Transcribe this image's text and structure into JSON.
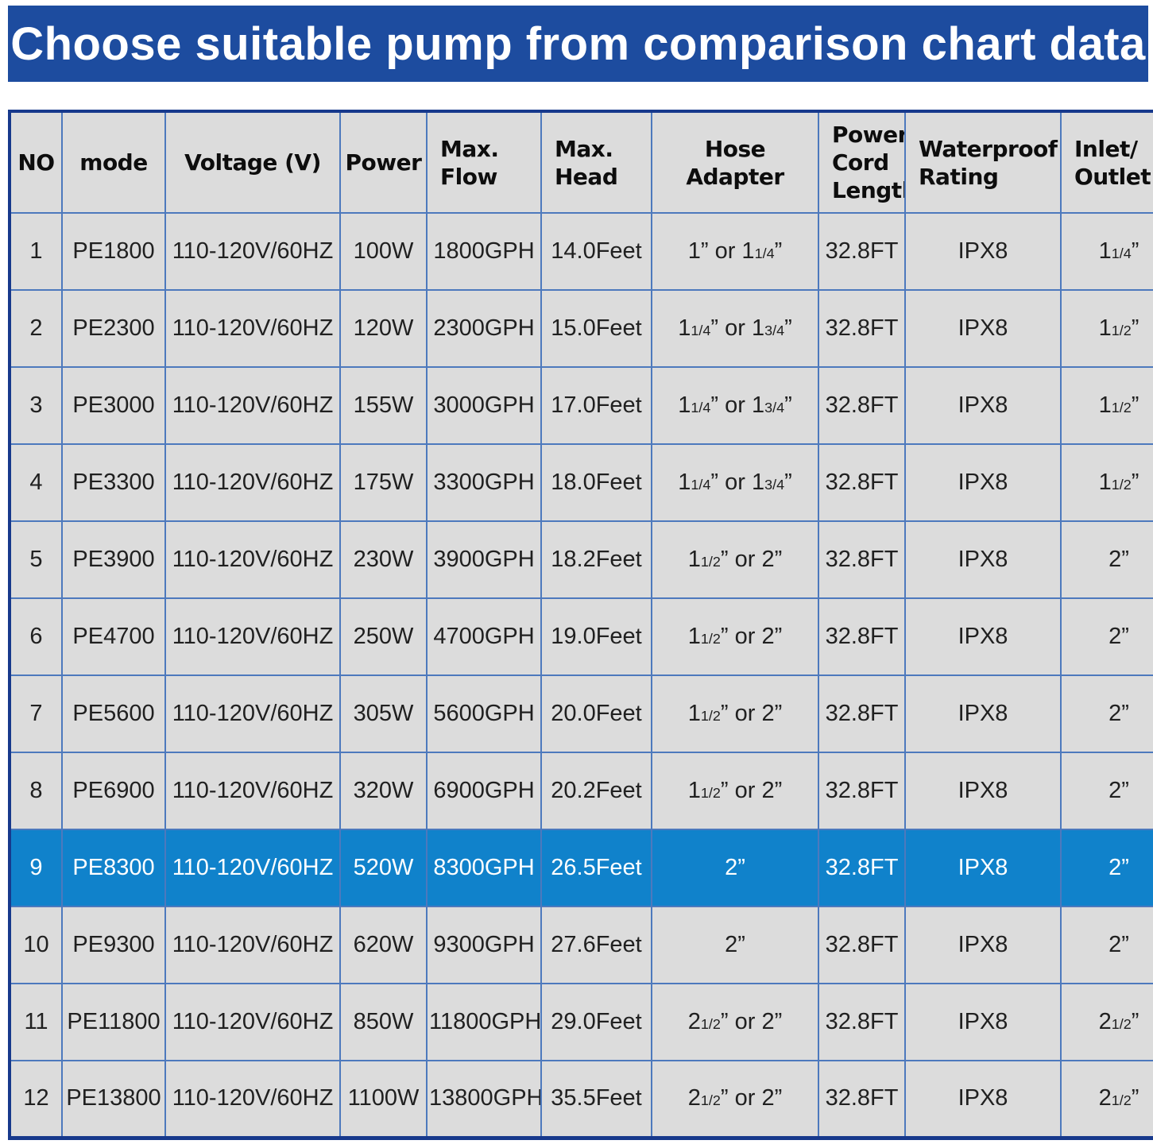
{
  "title": "Choose suitable pump from comparison chart data",
  "colors": {
    "banner_bg": "#1d4c9f",
    "banner_text": "#ffffff",
    "cell_bg": "#dcdcdc",
    "grid_border": "#4d79bd",
    "outer_border": "#17398c",
    "header_text": "#0d0d0d",
    "data_text": "#202020",
    "highlight_bg": "#1082cb",
    "highlight_text": "#ffffff"
  },
  "chart_data": {
    "type": "table",
    "title": "Choose suitable pump from comparison chart data",
    "highlighted_row_no": 9,
    "columns": [
      {
        "key": "no",
        "label": "NO"
      },
      {
        "key": "mode",
        "label": "mode"
      },
      {
        "key": "voltage",
        "label": "Voltage (V)"
      },
      {
        "key": "power",
        "label": "Power"
      },
      {
        "key": "max_flow",
        "label": "Max.\nFlow"
      },
      {
        "key": "max_head",
        "label": "Max.\nHead"
      },
      {
        "key": "hose_adapter",
        "label": "Hose Adapter"
      },
      {
        "key": "power_cord_length",
        "label": "Power\nCord\nLength"
      },
      {
        "key": "waterproof_rating",
        "label": "Waterproof\nRating"
      },
      {
        "key": "inlet_outlet",
        "label": "Inlet/\nOutlet"
      }
    ],
    "rows": [
      [
        "1",
        "PE1800",
        "110-120V/60HZ",
        "100W",
        "1800GPH",
        "14.0Feet",
        "1” or 1[1/4]”",
        "32.8FT",
        "IPX8",
        "1[1/4]”"
      ],
      [
        "2",
        "PE2300",
        "110-120V/60HZ",
        "120W",
        "2300GPH",
        "15.0Feet",
        "1[1/4]” or 1[3/4]”",
        "32.8FT",
        "IPX8",
        "1[1/2]”"
      ],
      [
        "3",
        "PE3000",
        "110-120V/60HZ",
        "155W",
        "3000GPH",
        "17.0Feet",
        "1[1/4]” or 1[3/4]”",
        "32.8FT",
        "IPX8",
        "1[1/2]”"
      ],
      [
        "4",
        "PE3300",
        "110-120V/60HZ",
        "175W",
        "3300GPH",
        "18.0Feet",
        "1[1/4]” or 1[3/4]”",
        "32.8FT",
        "IPX8",
        "1[1/2]”"
      ],
      [
        "5",
        "PE3900",
        "110-120V/60HZ",
        "230W",
        "3900GPH",
        "18.2Feet",
        "1[1/2]” or 2”",
        "32.8FT",
        "IPX8",
        "2”"
      ],
      [
        "6",
        "PE4700",
        "110-120V/60HZ",
        "250W",
        "4700GPH",
        "19.0Feet",
        "1[1/2]” or 2”",
        "32.8FT",
        "IPX8",
        "2”"
      ],
      [
        "7",
        "PE5600",
        "110-120V/60HZ",
        "305W",
        "5600GPH",
        "20.0Feet",
        "1[1/2]” or 2”",
        "32.8FT",
        "IPX8",
        "2”"
      ],
      [
        "8",
        "PE6900",
        "110-120V/60HZ",
        "320W",
        "6900GPH",
        "20.2Feet",
        "1[1/2]” or 2”",
        "32.8FT",
        "IPX8",
        "2”"
      ],
      [
        "9",
        "PE8300",
        "110-120V/60HZ",
        "520W",
        "8300GPH",
        "26.5Feet",
        "2”",
        "32.8FT",
        "IPX8",
        "2”"
      ],
      [
        "10",
        "PE9300",
        "110-120V/60HZ",
        "620W",
        "9300GPH",
        "27.6Feet",
        "2”",
        "32.8FT",
        "IPX8",
        "2”"
      ],
      [
        "11",
        "PE11800",
        "110-120V/60HZ",
        "850W",
        "11800GPH",
        "29.0Feet",
        "2[1/2]” or 2”",
        "32.8FT",
        "IPX8",
        "2[1/2]”"
      ],
      [
        "12",
        "PE13800",
        "110-120V/60HZ",
        "1100W",
        "13800GPH",
        "35.5Feet",
        "2[1/2]” or 2”",
        "32.8FT",
        "IPX8",
        "2[1/2]”"
      ]
    ]
  }
}
